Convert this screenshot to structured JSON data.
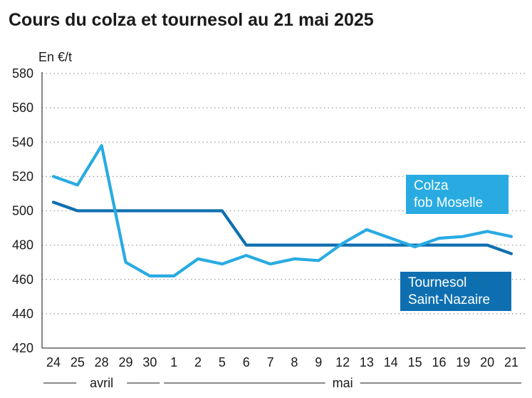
{
  "title": "Cours du colza et tournesol au 21 mai 2025",
  "chart_data": {
    "type": "line",
    "title": "Cours du colza et tournesol au 21 mai 2025",
    "ylabel": "En €/t",
    "ylim": [
      420,
      580
    ],
    "yticks": [
      420,
      440,
      460,
      480,
      500,
      520,
      540,
      560,
      580
    ],
    "grid": true,
    "x": [
      "24",
      "25",
      "28",
      "29",
      "30",
      "1",
      "2",
      "5",
      "6",
      "7",
      "8",
      "9",
      "12",
      "13",
      "14",
      "15",
      "16",
      "19",
      "20",
      "21"
    ],
    "months": [
      {
        "label": "avril",
        "from": 0,
        "to": 4
      },
      {
        "label": "mai",
        "from": 5,
        "to": 19
      }
    ],
    "series": [
      {
        "name": "Colza fob Moselle",
        "label_lines": [
          "Colza",
          "fob Moselle"
        ],
        "color": "#29abe2",
        "values": [
          520,
          515,
          538,
          470,
          462,
          462,
          472,
          469,
          474,
          469,
          472,
          471,
          481,
          489,
          484,
          479,
          484,
          485,
          488,
          485
        ]
      },
      {
        "name": "Tournesol Saint-Nazaire",
        "label_lines": [
          "Tournesol",
          "Saint-Nazaire"
        ],
        "color": "#0e6fb0",
        "values": [
          505,
          500,
          500,
          500,
          500,
          500,
          500,
          500,
          480,
          480,
          480,
          480,
          480,
          480,
          480,
          480,
          480,
          480,
          480,
          475
        ]
      }
    ]
  }
}
